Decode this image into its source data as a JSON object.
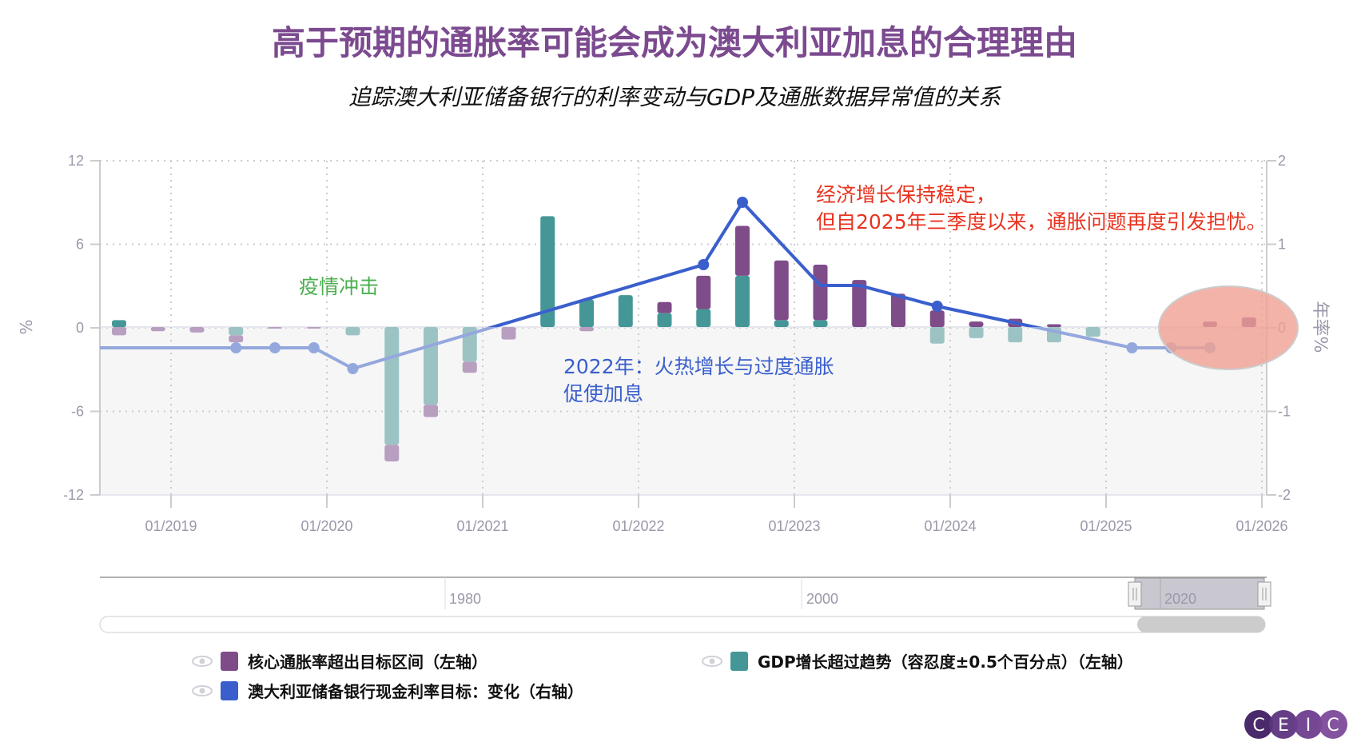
{
  "title": "高于预期的通胀率可能会成为澳大利亚加息的合理理由",
  "subtitle": "追踪澳大利亚储备银行的利率变动与GDP及通胀数据异常值的关系",
  "annotations": {
    "pandemic": "疫情冲击",
    "hike_2022_line1": "2022年：火热增长与过度通胀",
    "hike_2022_line2": "促使加息",
    "recent_line1": "经济增长保持稳定，",
    "recent_line2": "但自2025年三季度以来，通胀问题再度引发担忧。"
  },
  "navigator": {
    "labels": [
      "1980",
      "2000",
      "2020"
    ]
  },
  "legend": [
    {
      "label": "核心通胀率超出目标区间（左轴）",
      "color": "#7f4c8a",
      "icon": "eye-icon"
    },
    {
      "label": "GDP增长超过趋势（容忍度±0.5个百分点）（左轴）",
      "color": "#449796",
      "icon": "eye-icon"
    },
    {
      "label": "澳大利亚储备银行现金利率目标：变化（右轴）",
      "color": "#3a5fcd",
      "icon": "eye-icon"
    }
  ],
  "logo": "CEIC",
  "chart_data": {
    "type": "bar",
    "stacked": true,
    "xlabel": "",
    "ylabel": "%",
    "y2label": "年率%",
    "ylim": [
      -12,
      12
    ],
    "y2lim": [
      -2,
      2
    ],
    "yticks": [
      "12",
      "6",
      "0",
      "-6",
      "-12"
    ],
    "y2ticks": [
      "2",
      "1",
      "0",
      "-1",
      "-2"
    ],
    "xticks": [
      "01/2019",
      "01/2020",
      "01/2021",
      "01/2022",
      "01/2023",
      "01/2024",
      "01/2025",
      "01/2026"
    ],
    "grid": true,
    "colors": {
      "inflation": "#7f4c8a",
      "inflation_neg": "#b89fc0",
      "gdp": "#449796",
      "gdp_neg": "#9cc3c4",
      "rate": "#3a5fcd",
      "rate_neg": "#94a8dd",
      "highlight": "#f0a092"
    },
    "categories": [
      "2018-Q3",
      "2018-Q4",
      "2019-Q1",
      "2019-Q2",
      "2019-Q3",
      "2019-Q4",
      "2020-Q1",
      "2020-Q2",
      "2020-Q3",
      "2020-Q4",
      "2021-Q1",
      "2021-Q2",
      "2021-Q3",
      "2021-Q4",
      "2022-Q1",
      "2022-Q2",
      "2022-Q3",
      "2022-Q4",
      "2023-Q1",
      "2023-Q2",
      "2023-Q3",
      "2023-Q4",
      "2024-Q1",
      "2024-Q2",
      "2024-Q3",
      "2024-Q4",
      "2025-Q1",
      "2025-Q2",
      "2025-Q3",
      "2025-Q4"
    ],
    "series": [
      {
        "name": "GDP增长超过趋势（容忍度±0.5个百分点）（左轴）",
        "axis": "left",
        "values": [
          0.5,
          0,
          0,
          -0.6,
          0,
          0,
          -0.6,
          -8.5,
          -5.6,
          -2.5,
          0,
          8.0,
          2.0,
          2.3,
          1.0,
          1.3,
          3.7,
          0.5,
          0.5,
          0,
          0,
          -1.2,
          -0.8,
          -1.1,
          -1.1,
          -0.7,
          0,
          0,
          0,
          0
        ]
      },
      {
        "name": "核心通胀率超出目标区间（左轴）",
        "axis": "left",
        "values": [
          -0.6,
          -0.3,
          -0.4,
          -0.5,
          -0.1,
          -0.1,
          0,
          -1.2,
          -0.9,
          -0.8,
          -0.9,
          0,
          -0.3,
          0,
          0.8,
          2.4,
          3.6,
          4.3,
          4.0,
          3.4,
          2.4,
          1.2,
          0.4,
          0.6,
          0.2,
          0,
          0,
          0,
          0.4,
          0.7
        ]
      },
      {
        "name": "澳大利亚储备银行现金利率目标：变化（右轴）",
        "axis": "right",
        "type": "line",
        "points": [
          {
            "x": "2018-Q3",
            "y": -0.25,
            "marker": false
          },
          {
            "x": "2019-Q2",
            "y": -0.25,
            "marker": true
          },
          {
            "x": "2019-Q3",
            "y": -0.25,
            "marker": true
          },
          {
            "x": "2019-Q4",
            "y": -0.25,
            "marker": true
          },
          {
            "x": "2020-Q1",
            "y": -0.5,
            "marker": true
          },
          {
            "x": "2022-Q2",
            "y": 0.75,
            "marker": true
          },
          {
            "x": "2022-Q3",
            "y": 1.5,
            "marker": true
          },
          {
            "x": "2023-Q1",
            "y": 0.5,
            "marker": false
          },
          {
            "x": "2023-Q2",
            "y": 0.5,
            "marker": false
          },
          {
            "x": "2023-Q4",
            "y": 0.25,
            "marker": true
          },
          {
            "x": "2025-Q1",
            "y": -0.25,
            "marker": true
          },
          {
            "x": "2025-Q2",
            "y": -0.25,
            "marker": true
          },
          {
            "x": "2025-Q3",
            "y": -0.25,
            "marker": true
          }
        ]
      }
    ],
    "highlight_region": [
      "2025-Q3",
      "2025-Q4"
    ]
  }
}
